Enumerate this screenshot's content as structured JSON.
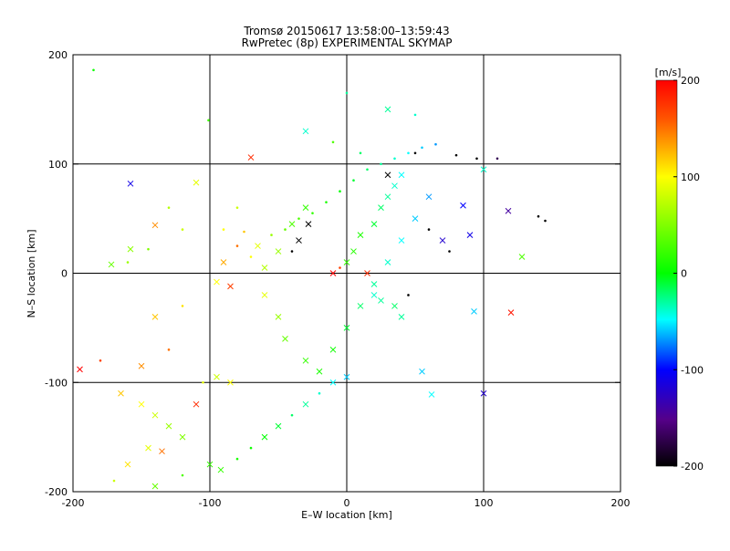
{
  "chart_data": {
    "type": "scatter",
    "title": "Tromsø 20150617 13:58:00–13:59:43",
    "subtitle": "RwPretec (8p) EXPERIMENTAL SKYMAP",
    "xlabel": "E–W location [km]",
    "ylabel": "N–S location [km]",
    "xlim": [
      -200,
      200
    ],
    "ylim": [
      -200,
      200
    ],
    "x_ticks": [
      "-200",
      "-100",
      "0",
      "100",
      "200"
    ],
    "y_ticks": [
      "-200",
      "-100",
      "0",
      "100",
      "200"
    ],
    "grid_lines": [
      -100,
      0,
      100
    ],
    "grid": true,
    "colorbar": {
      "unit": "[m/s]",
      "min": -200,
      "max": 200,
      "ticks": [
        "200",
        "100",
        "0",
        "-100",
        "-200"
      ]
    },
    "markers": [
      "dot",
      "x"
    ],
    "series": [
      {
        "points": [
          [
            -185,
            186,
            5,
            "dot"
          ],
          [
            -101,
            140,
            25,
            "dot"
          ],
          [
            -70,
            106,
            180,
            "x"
          ],
          [
            -158,
            82,
            -110,
            "x"
          ],
          [
            -110,
            83,
            90,
            "x"
          ],
          [
            -160,
            10,
            60,
            "dot"
          ],
          [
            -158,
            22,
            55,
            "x"
          ],
          [
            -172,
            8,
            40,
            "x"
          ],
          [
            -145,
            22,
            50,
            "dot"
          ],
          [
            -140,
            44,
            140,
            "x"
          ],
          [
            -130,
            60,
            70,
            "dot"
          ],
          [
            -120,
            40,
            80,
            "dot"
          ],
          [
            -90,
            10,
            130,
            "x"
          ],
          [
            -95,
            -8,
            100,
            "x"
          ],
          [
            -85,
            -12,
            170,
            "x"
          ],
          [
            -80,
            25,
            150,
            "dot"
          ],
          [
            -70,
            15,
            100,
            "dot"
          ],
          [
            -60,
            5,
            70,
            "x"
          ],
          [
            -50,
            20,
            60,
            "x"
          ],
          [
            -40,
            45,
            30,
            "x"
          ],
          [
            -30,
            60,
            20,
            "x"
          ],
          [
            -35,
            30,
            -200,
            "x"
          ],
          [
            -28,
            45,
            -220,
            "x"
          ],
          [
            -40,
            20,
            -200,
            "dot"
          ],
          [
            -60,
            -20,
            90,
            "x"
          ],
          [
            -50,
            -40,
            60,
            "x"
          ],
          [
            -45,
            -60,
            40,
            "x"
          ],
          [
            -30,
            -80,
            20,
            "x"
          ],
          [
            -20,
            -90,
            10,
            "x"
          ],
          [
            -10,
            -70,
            5,
            "x"
          ],
          [
            0,
            -50,
            -10,
            "x"
          ],
          [
            10,
            -30,
            -20,
            "x"
          ],
          [
            20,
            -10,
            -30,
            "x"
          ],
          [
            30,
            10,
            -40,
            "x"
          ],
          [
            40,
            30,
            -50,
            "x"
          ],
          [
            50,
            50,
            -60,
            "x"
          ],
          [
            60,
            70,
            -70,
            "x"
          ],
          [
            70,
            30,
            -120,
            "x"
          ],
          [
            90,
            35,
            -110,
            "x"
          ],
          [
            85,
            62,
            -100,
            "x"
          ],
          [
            100,
            95,
            -40,
            "x"
          ],
          [
            118,
            57,
            -140,
            "x"
          ],
          [
            140,
            52,
            -230,
            "dot"
          ],
          [
            145,
            48,
            -230,
            "dot"
          ],
          [
            128,
            15,
            30,
            "x"
          ],
          [
            120,
            -36,
            190,
            "x"
          ],
          [
            100,
            -110,
            -120,
            "x"
          ],
          [
            93,
            -35,
            -60,
            "x"
          ],
          [
            62,
            -111,
            -50,
            "x"
          ],
          [
            55,
            -90,
            -60,
            "x"
          ],
          [
            40,
            -40,
            -30,
            "x"
          ],
          [
            35,
            -30,
            -20,
            "x"
          ],
          [
            25,
            -25,
            -30,
            "x"
          ],
          [
            20,
            -20,
            -40,
            "x"
          ],
          [
            15,
            0,
            180,
            "x"
          ],
          [
            -10,
            0,
            200,
            "x"
          ],
          [
            -5,
            5,
            170,
            "dot"
          ],
          [
            0,
            10,
            20,
            "x"
          ],
          [
            5,
            20,
            15,
            "x"
          ],
          [
            10,
            35,
            10,
            "x"
          ],
          [
            20,
            45,
            -10,
            "x"
          ],
          [
            25,
            60,
            -20,
            "x"
          ],
          [
            30,
            70,
            -30,
            "x"
          ],
          [
            35,
            80,
            -40,
            "x"
          ],
          [
            40,
            90,
            -50,
            "x"
          ],
          [
            30,
            90,
            -220,
            "x"
          ],
          [
            -30,
            130,
            -40,
            "x"
          ],
          [
            -10,
            120,
            30,
            "dot"
          ],
          [
            10,
            110,
            -20,
            "dot"
          ],
          [
            30,
            150,
            -30,
            "x"
          ],
          [
            50,
            145,
            -40,
            "dot"
          ],
          [
            0,
            165,
            -30,
            "dot"
          ],
          [
            -195,
            -88,
            200,
            "x"
          ],
          [
            -180,
            -80,
            170,
            "dot"
          ],
          [
            -165,
            -110,
            120,
            "x"
          ],
          [
            -150,
            -120,
            100,
            "x"
          ],
          [
            -140,
            -130,
            80,
            "x"
          ],
          [
            -130,
            -140,
            60,
            "x"
          ],
          [
            -120,
            -150,
            50,
            "x"
          ],
          [
            -145,
            -160,
            90,
            "x"
          ],
          [
            -135,
            -163,
            150,
            "x"
          ],
          [
            -160,
            -175,
            110,
            "x"
          ],
          [
            -170,
            -190,
            80,
            "dot"
          ],
          [
            -140,
            -195,
            40,
            "x"
          ],
          [
            -120,
            -185,
            30,
            "dot"
          ],
          [
            -100,
            -175,
            20,
            "x"
          ],
          [
            -92,
            -180,
            20,
            "x"
          ],
          [
            -80,
            -170,
            10,
            "dot"
          ],
          [
            -70,
            -160,
            5,
            "dot"
          ],
          [
            -60,
            -150,
            0,
            "x"
          ],
          [
            -50,
            -140,
            -10,
            "x"
          ],
          [
            -40,
            -130,
            -20,
            "dot"
          ],
          [
            -30,
            -120,
            -30,
            "x"
          ],
          [
            -20,
            -110,
            -40,
            "dot"
          ],
          [
            -10,
            -100,
            -50,
            "x"
          ],
          [
            0,
            -95,
            -60,
            "x"
          ],
          [
            -110,
            -120,
            180,
            "x"
          ],
          [
            -105,
            -100,
            90,
            "dot"
          ],
          [
            -95,
            -95,
            80,
            "x"
          ],
          [
            -85,
            -100,
            100,
            "x"
          ],
          [
            -120,
            -30,
            110,
            "dot"
          ],
          [
            -140,
            -40,
            120,
            "x"
          ],
          [
            -130,
            -70,
            150,
            "dot"
          ],
          [
            -150,
            -85,
            140,
            "x"
          ],
          [
            50,
            110,
            -220,
            "dot"
          ],
          [
            80,
            108,
            -230,
            "dot"
          ],
          [
            95,
            105,
            -200,
            "dot"
          ],
          [
            110,
            105,
            -170,
            "dot"
          ],
          [
            60,
            40,
            -230,
            "dot"
          ],
          [
            75,
            20,
            -200,
            "dot"
          ],
          [
            45,
            -20,
            -210,
            "dot"
          ],
          [
            -80,
            60,
            80,
            "dot"
          ],
          [
            -90,
            40,
            100,
            "dot"
          ],
          [
            -75,
            38,
            120,
            "dot"
          ],
          [
            -65,
            25,
            90,
            "x"
          ],
          [
            -55,
            35,
            60,
            "dot"
          ],
          [
            -45,
            40,
            40,
            "dot"
          ],
          [
            -35,
            50,
            30,
            "dot"
          ],
          [
            -25,
            55,
            20,
            "dot"
          ],
          [
            -15,
            65,
            10,
            "dot"
          ],
          [
            -5,
            75,
            0,
            "dot"
          ],
          [
            5,
            85,
            -10,
            "dot"
          ],
          [
            15,
            95,
            -20,
            "dot"
          ],
          [
            25,
            100,
            -30,
            "dot"
          ],
          [
            35,
            105,
            -40,
            "dot"
          ],
          [
            45,
            110,
            -50,
            "dot"
          ],
          [
            55,
            115,
            -60,
            "dot"
          ],
          [
            65,
            118,
            -70,
            "dot"
          ]
        ]
      }
    ]
  }
}
